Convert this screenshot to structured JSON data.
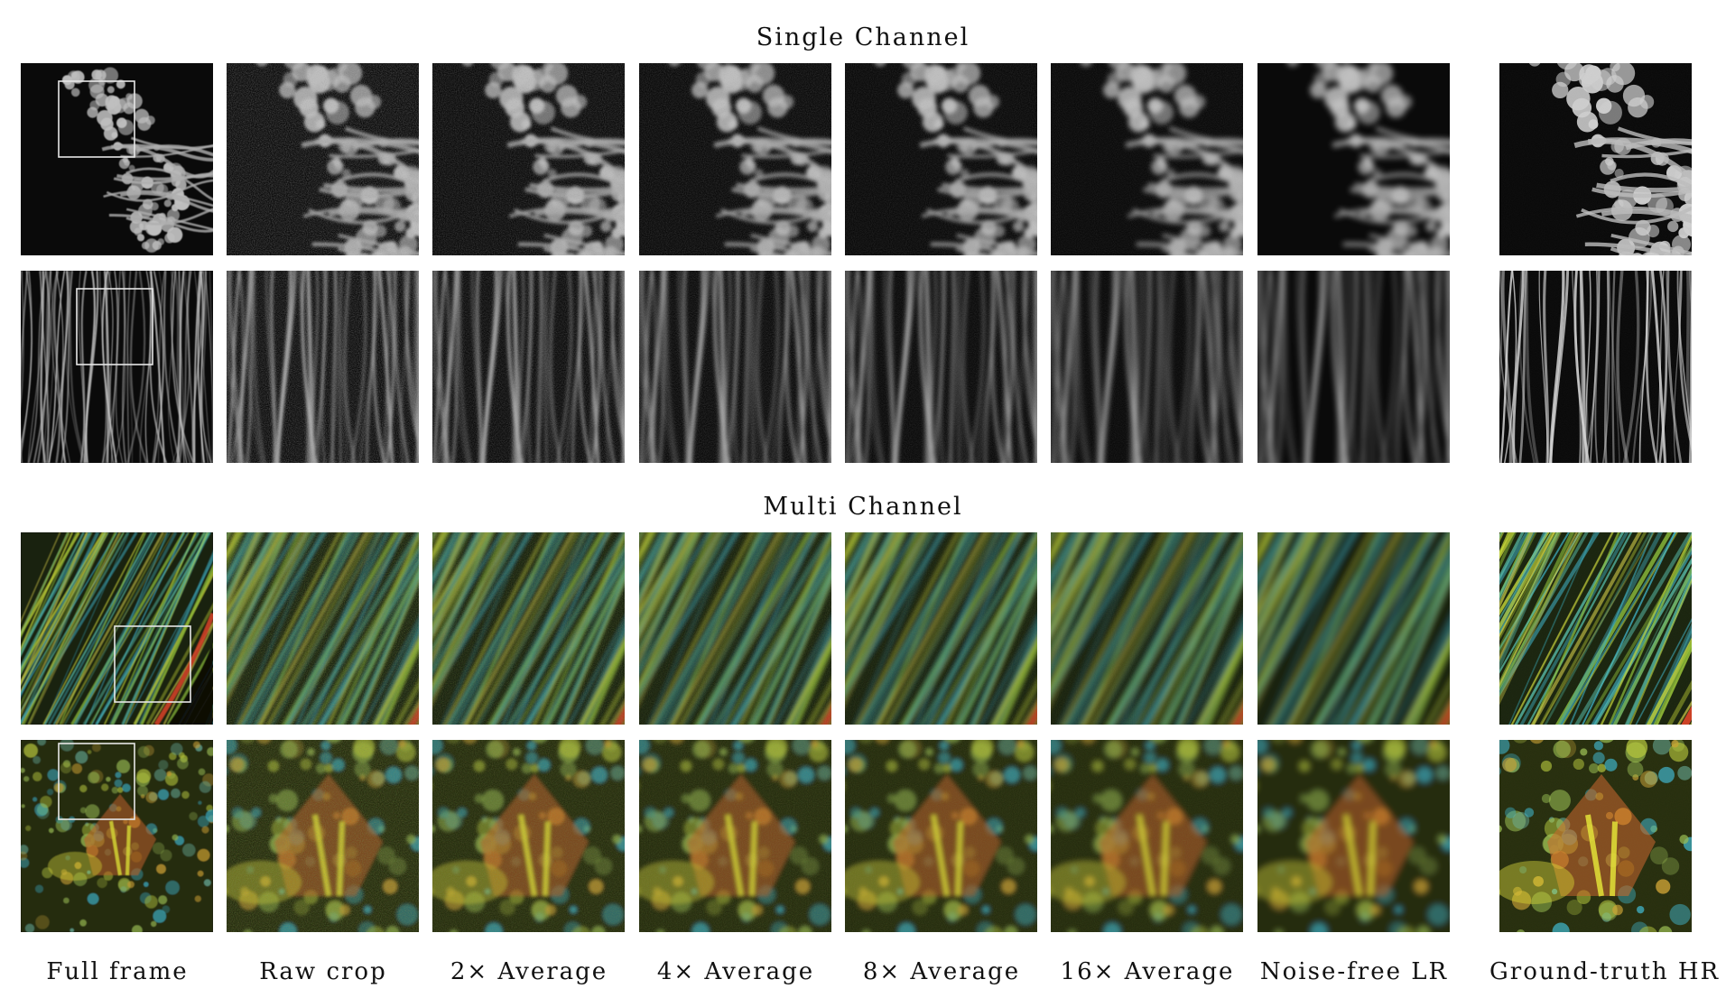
{
  "sections": {
    "single": "Single Channel",
    "multi": "Multi Channel"
  },
  "columns": [
    "Full frame",
    "Raw crop",
    "2×  Average",
    "4×  Average",
    "8×  Average",
    "16×  Average",
    "Noise-free LR",
    "Ground-truth HR"
  ],
  "rows": [
    {
      "section": "single",
      "specimen": "mitochondria",
      "palette": "grayscale"
    },
    {
      "section": "single",
      "specimen": "filaments",
      "palette": "grayscale"
    },
    {
      "section": "multi",
      "specimen": "filament-network",
      "palette": "cyan-yellow-red"
    },
    {
      "section": "multi",
      "specimen": "cell-cluster",
      "palette": "cyan-yellow-red"
    }
  ],
  "colors": {
    "background": "#ffffff",
    "tile_background": "#0a0a0a",
    "roi_box": "#e6e6e6"
  }
}
